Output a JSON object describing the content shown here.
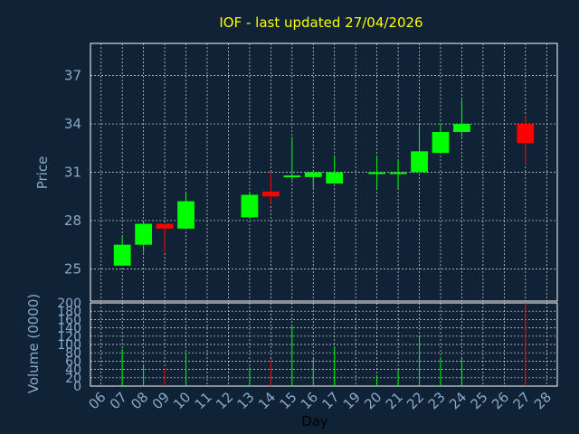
{
  "chart_data": {
    "type": "candlestick",
    "title": "IOF - last updated 27/04/2026",
    "price_axis": {
      "label": "Price",
      "ylim": [
        23,
        39
      ],
      "ticks": [
        25,
        28,
        31,
        34,
        37
      ]
    },
    "volume_axis": {
      "label": "Volume (0000)",
      "ylim": [
        0,
        200
      ],
      "ticks": [
        0,
        20,
        40,
        60,
        80,
        100,
        120,
        140,
        160,
        180,
        200
      ]
    },
    "xlabel": "Day",
    "x_ticks": [
      "06",
      "07",
      "08",
      "09",
      "10",
      "11",
      "12",
      "13",
      "14",
      "15",
      "16",
      "17",
      "19",
      "20",
      "21",
      "22",
      "23",
      "24",
      "25",
      "26",
      "27",
      "28"
    ],
    "grid": true,
    "up_color": "#00ff00",
    "down_color": "#ff0000",
    "candles": [
      {
        "day": "07",
        "open": 25.2,
        "high": 27.0,
        "low": 25.2,
        "close": 26.5,
        "volume": 90
      },
      {
        "day": "08",
        "open": 26.5,
        "high": 27.9,
        "low": 26.0,
        "close": 27.8,
        "volume": 52
      },
      {
        "day": "09",
        "open": 27.8,
        "high": 27.8,
        "low": 26.0,
        "close": 27.5,
        "volume": 45
      },
      {
        "day": "10",
        "open": 27.5,
        "high": 29.8,
        "low": 27.5,
        "close": 29.2,
        "volume": 78
      },
      {
        "day": "13",
        "open": 28.2,
        "high": 29.7,
        "low": 28.2,
        "close": 29.6,
        "volume": 45
      },
      {
        "day": "14",
        "open": 29.8,
        "high": 31.0,
        "low": 29.0,
        "close": 29.5,
        "volume": 65
      },
      {
        "day": "15",
        "open": 30.7,
        "high": 33.2,
        "low": 30.5,
        "close": 30.8,
        "volume": 145
      },
      {
        "day": "16",
        "open": 30.7,
        "high": 31.0,
        "low": 30.0,
        "close": 31.0,
        "volume": 65
      },
      {
        "day": "17",
        "open": 30.3,
        "high": 32.0,
        "low": 30.3,
        "close": 31.0,
        "volume": 95
      },
      {
        "day": "20",
        "open": 30.9,
        "high": 32.0,
        "low": 30.0,
        "close": 31.0,
        "volume": 25
      },
      {
        "day": "21",
        "open": 31.0,
        "high": 31.8,
        "low": 30.0,
        "close": 31.0,
        "volume": 40
      },
      {
        "day": "22",
        "open": 31.0,
        "high": 34.0,
        "low": 31.0,
        "close": 32.3,
        "volume": 120
      },
      {
        "day": "23",
        "open": 32.2,
        "high": 34.0,
        "low": 32.2,
        "close": 33.5,
        "volume": 70
      },
      {
        "day": "24",
        "open": 33.5,
        "high": 35.5,
        "low": 33.2,
        "close": 34.0,
        "volume": 65
      },
      {
        "day": "27",
        "open": 34.0,
        "high": 34.5,
        "low": 31.5,
        "close": 32.8,
        "volume": 200
      }
    ]
  }
}
